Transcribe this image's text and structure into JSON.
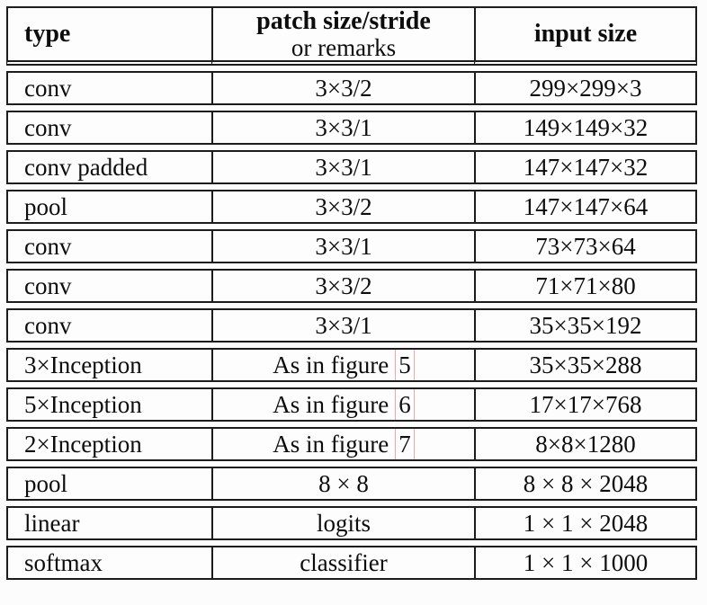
{
  "table": {
    "columns": {
      "type_label": "type",
      "patch_label": "patch size/stride",
      "patch_sublabel": "or remarks",
      "input_label": "input size"
    },
    "link_box_color": "#f3a6a6",
    "rows": [
      {
        "type": "conv",
        "patch": "3×3/2",
        "input": "299×299×3"
      },
      {
        "type": "conv",
        "patch": "3×3/1",
        "input": "149×149×32"
      },
      {
        "type": "conv padded",
        "patch": "3×3/1",
        "input": "147×147×32"
      },
      {
        "type": "pool",
        "patch": "3×3/2",
        "input": "147×147×64"
      },
      {
        "type": "conv",
        "patch": "3×3/1",
        "input": "73×73×64"
      },
      {
        "type": "conv",
        "patch": "3×3/2",
        "input": "71×71×80"
      },
      {
        "type": "conv",
        "patch": "3×3/1",
        "input": "35×35×192"
      },
      {
        "type": "3×Inception",
        "patch": "As in figure",
        "figure_ref": "5",
        "input": "35×35×288"
      },
      {
        "type": "5×Inception",
        "patch": "As in figure",
        "figure_ref": "6",
        "input": "17×17×768"
      },
      {
        "type": "2×Inception",
        "patch": "As in figure",
        "figure_ref": "7",
        "input": "8×8×1280"
      },
      {
        "type": "pool",
        "patch": "8 × 8",
        "input": "8 × 8 × 2048"
      },
      {
        "type": "linear",
        "patch": "logits",
        "input": "1 × 1 × 2048"
      },
      {
        "type": "softmax",
        "patch": "classifier",
        "input": "1 × 1 × 1000"
      }
    ]
  }
}
